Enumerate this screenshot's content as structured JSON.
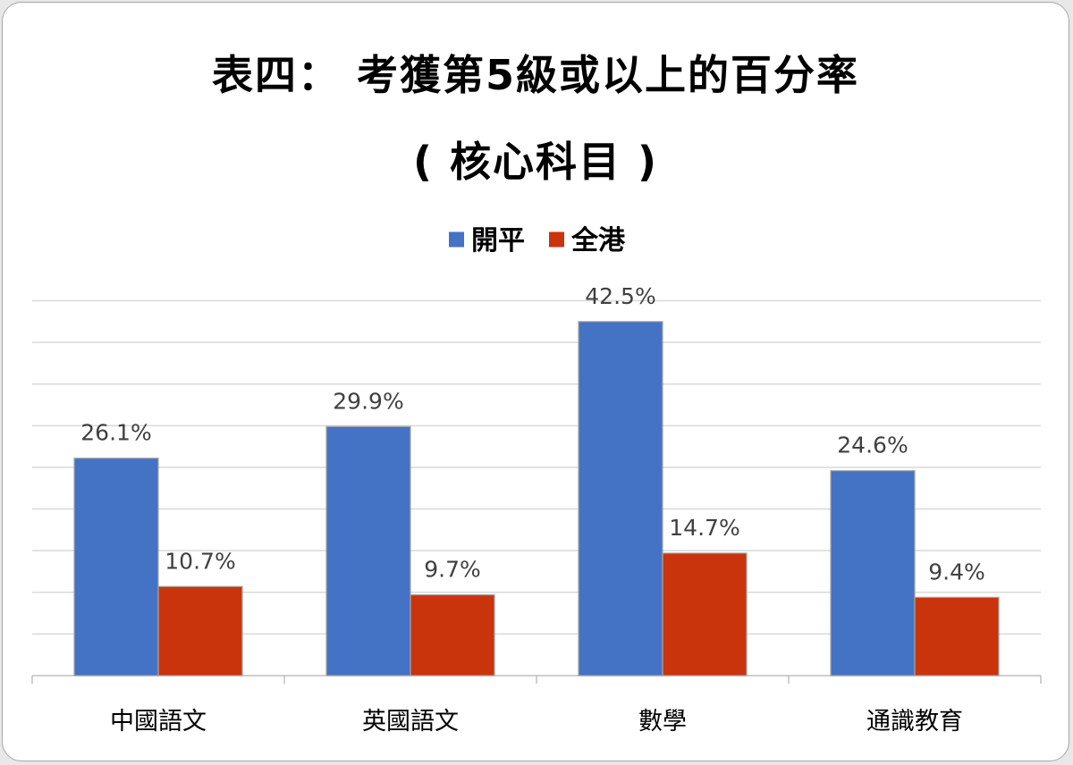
{
  "chart_data": {
    "type": "bar",
    "title": "表四： 考獲第5級或以上的百分率",
    "subtitle": "( 核心科目 )",
    "categories": [
      "中國語文",
      "英國語文",
      "數學",
      "通識教育"
    ],
    "series": [
      {
        "name": "開平",
        "values": [
          26.1,
          29.9,
          42.5,
          24.6
        ],
        "labels": [
          "26.1%",
          "29.9%",
          "42.5%",
          "24.6%"
        ],
        "color": "#4472c4"
      },
      {
        "name": "全港",
        "values": [
          10.7,
          9.7,
          14.7,
          9.4
        ],
        "labels": [
          "10.7%",
          "9.7%",
          "14.7%",
          "9.4%"
        ],
        "color": "#c9340c"
      }
    ],
    "ylim": [
      0,
      45
    ],
    "y_axis_visible": false,
    "grid": true,
    "legend_position": "top-center"
  }
}
